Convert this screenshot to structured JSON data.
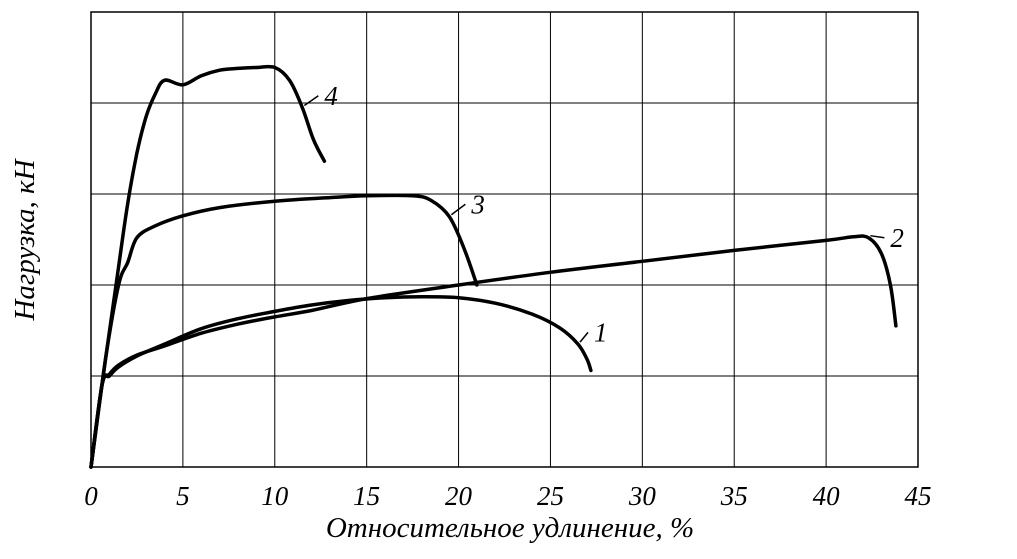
{
  "chart_data": {
    "type": "line",
    "title": "",
    "xlabel": "Относительное удлинение, %",
    "ylabel": "Нагрузка, кН",
    "xlim": [
      0,
      45
    ],
    "ylim": [
      0,
      5
    ],
    "x_ticks": [
      "0",
      "5",
      "10",
      "15",
      "20",
      "25",
      "30",
      "35",
      "40",
      "45"
    ],
    "y_ticks_labeled": false,
    "y_grid_count": 5,
    "grid": true,
    "series": [
      {
        "name": "1",
        "x": [
          0,
          0.6,
          1.0,
          1.5,
          2.5,
          4,
          6,
          8,
          10,
          12,
          14,
          16,
          18,
          20,
          22,
          24,
          25.5,
          26.5,
          27.0,
          27.2
        ],
        "y": [
          0,
          0.9,
          1.0,
          1.1,
          1.22,
          1.35,
          1.52,
          1.63,
          1.71,
          1.78,
          1.83,
          1.86,
          1.87,
          1.86,
          1.8,
          1.68,
          1.53,
          1.35,
          1.18,
          1.06
        ]
      },
      {
        "name": "2",
        "x": [
          0,
          0.6,
          1.0,
          1.5,
          2.5,
          4,
          6,
          8,
          10,
          12,
          15,
          20,
          25,
          30,
          35,
          40,
          41.5,
          42.3,
          43.0,
          43.5,
          43.8
        ],
        "y": [
          0,
          0.9,
          1.02,
          1.12,
          1.23,
          1.33,
          1.47,
          1.57,
          1.65,
          1.72,
          1.85,
          2.0,
          2.14,
          2.26,
          2.38,
          2.49,
          2.53,
          2.52,
          2.35,
          2.0,
          1.55
        ]
      },
      {
        "name": "3",
        "x": [
          0,
          0.8,
          1.5,
          2.0,
          2.5,
          3.5,
          5,
          7,
          10,
          13,
          15,
          17.5,
          18.5,
          19.5,
          20.3,
          21.0
        ],
        "y": [
          0,
          1.2,
          2.0,
          2.25,
          2.52,
          2.65,
          2.76,
          2.85,
          2.92,
          2.96,
          2.98,
          2.98,
          2.93,
          2.75,
          2.4,
          2.0
        ]
      },
      {
        "name": "4",
        "x": [
          0,
          0.8,
          1.5,
          2.0,
          2.5,
          3.0,
          3.5,
          4,
          5,
          6,
          7,
          8,
          9,
          10,
          10.8,
          11.5,
          12.1,
          12.7
        ],
        "y": [
          0,
          1.2,
          2.2,
          2.9,
          3.45,
          3.85,
          4.1,
          4.25,
          4.2,
          4.3,
          4.36,
          4.38,
          4.39,
          4.39,
          4.25,
          3.95,
          3.6,
          3.36
        ]
      }
    ]
  }
}
